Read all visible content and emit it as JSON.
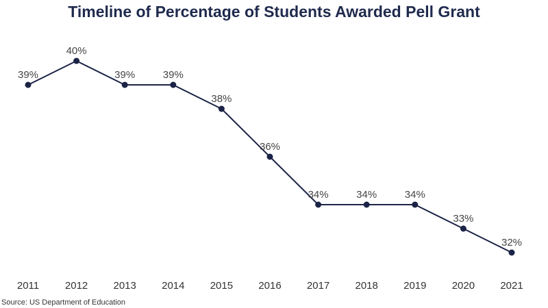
{
  "chart_data": {
    "type": "line",
    "title": "Timeline of Percentage of Students Awarded Pell Grant",
    "xlabel": "",
    "ylabel": "",
    "categories": [
      "2011",
      "2012",
      "2013",
      "2014",
      "2015",
      "2016",
      "2017",
      "2018",
      "2019",
      "2020",
      "2021"
    ],
    "series": [
      {
        "name": "Percentage of Students Awarded Pell Grant",
        "values": [
          39,
          40,
          39,
          39,
          38,
          36,
          34,
          34,
          34,
          33,
          32
        ],
        "labels": [
          "39%",
          "40%",
          "39%",
          "39%",
          "38%",
          "36%",
          "34%",
          "34%",
          "34%",
          "33%",
          "32%"
        ],
        "color": "#1b2346"
      }
    ],
    "ylim": [
      32,
      40
    ],
    "grid": false,
    "y_axis_visible": false,
    "source": "Source: US Department of Education"
  }
}
